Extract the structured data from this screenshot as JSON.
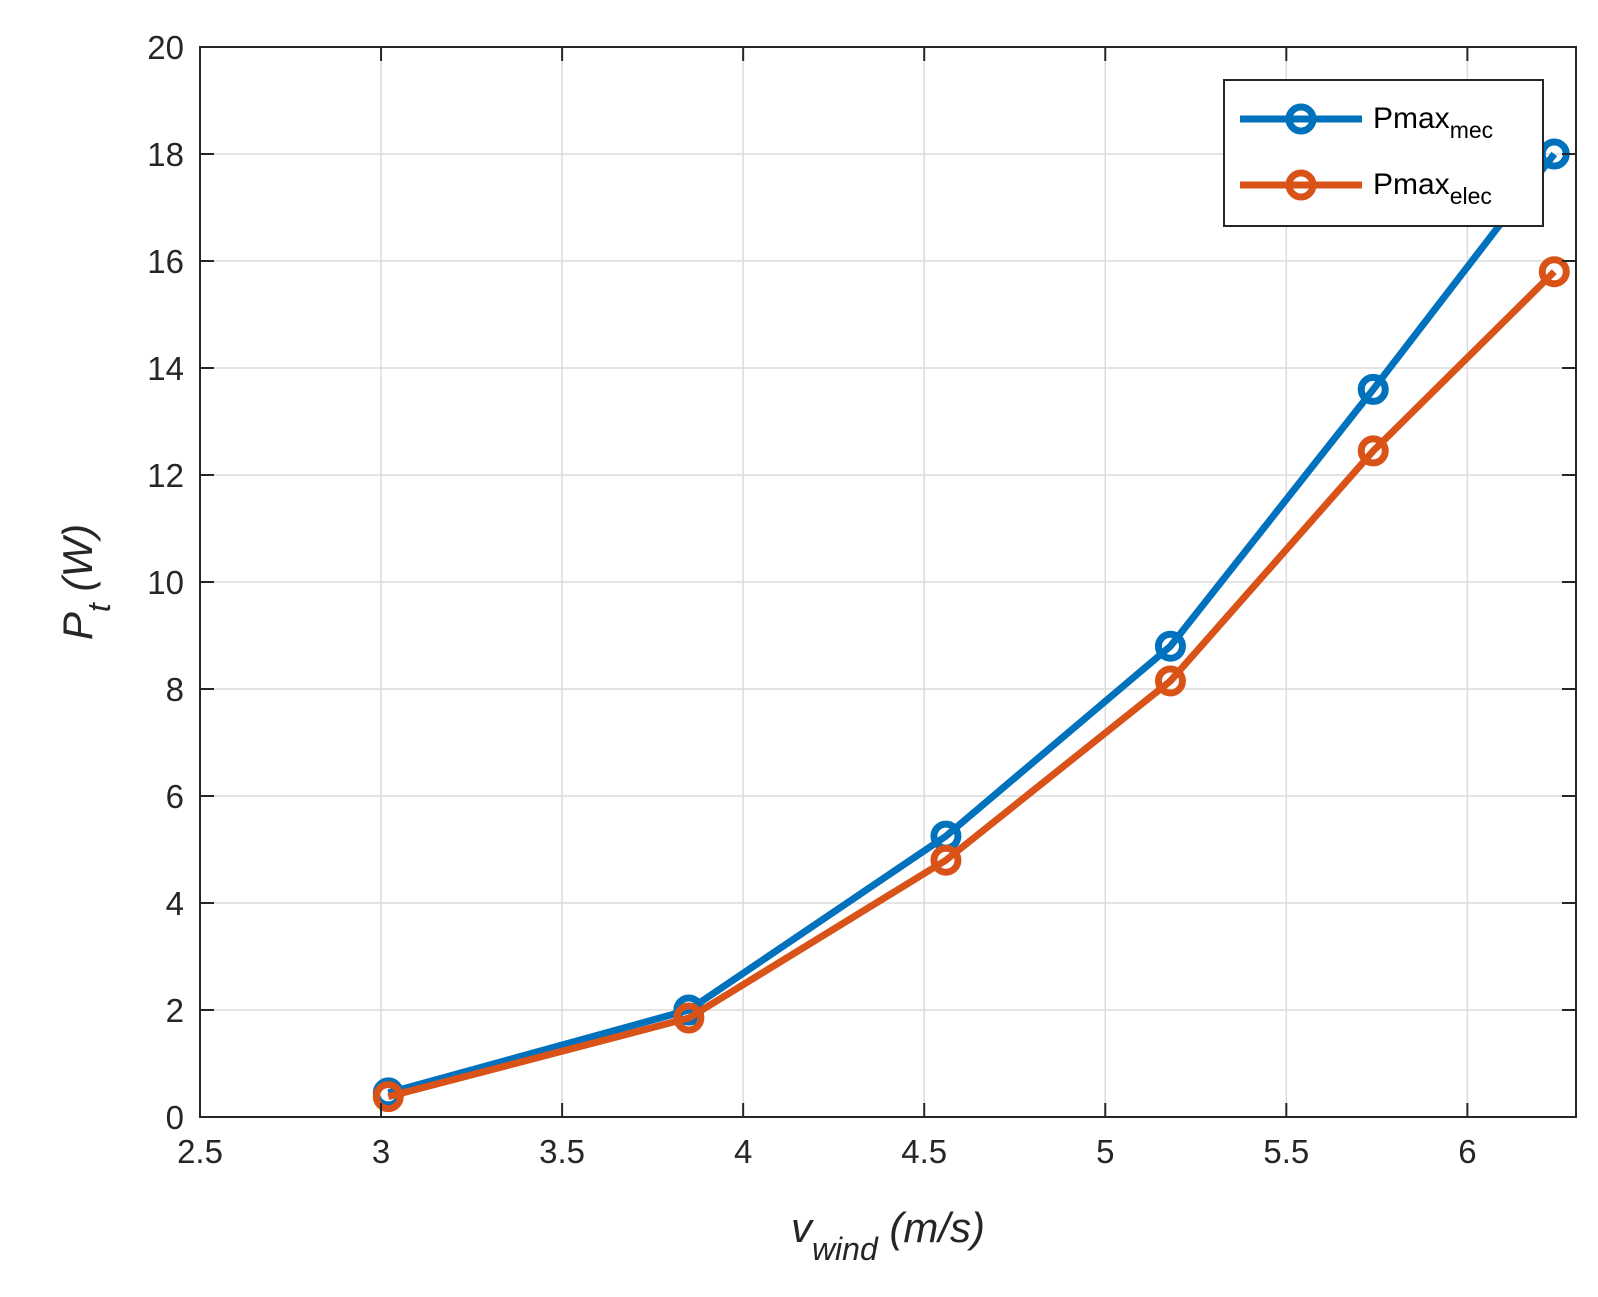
{
  "chart_data": {
    "type": "line",
    "title": "",
    "x": [
      3.02,
      3.85,
      4.56,
      5.18,
      5.74,
      6.24
    ],
    "series": [
      {
        "name": "Pmax",
        "subscript": "mec",
        "color": "#0072BD",
        "values": [
          0.45,
          2.0,
          5.25,
          8.8,
          13.6,
          18.0
        ]
      },
      {
        "name": "Pmax",
        "subscript": "elec",
        "color": "#D95319",
        "values": [
          0.38,
          1.85,
          4.8,
          8.15,
          12.45,
          15.8
        ]
      }
    ],
    "xlabel": {
      "main": "v",
      "sub": "wind",
      "units": " (m/s)"
    },
    "ylabel": {
      "main": "P",
      "sub": "t",
      "units": " (W)"
    },
    "xlim": [
      2.5,
      6.3
    ],
    "ylim": [
      0,
      20
    ],
    "xticks": [
      2.5,
      3,
      3.5,
      4,
      4.5,
      5,
      5.5,
      6
    ],
    "xtick_labels": [
      "2.5",
      "3",
      "3.5",
      "4",
      "4.5",
      "5",
      "5.5",
      "6"
    ],
    "yticks": [
      0,
      2,
      4,
      6,
      8,
      10,
      12,
      14,
      16,
      18,
      20
    ],
    "ytick_labels": [
      "0",
      "2",
      "4",
      "6",
      "8",
      "10",
      "12",
      "14",
      "16",
      "18",
      "20"
    ],
    "grid": true,
    "legend_position": "top-right"
  }
}
